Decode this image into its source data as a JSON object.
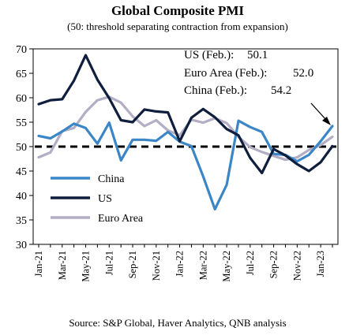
{
  "chart_data": {
    "type": "line",
    "title": "Global Composite PMI",
    "subtitle": "(50: threshold separating contraction from expansion)",
    "source": "Source: S&P Global, Haver Analytics, QNB analysis",
    "ylim": [
      30,
      70
    ],
    "yticks": [
      30,
      35,
      40,
      45,
      50,
      55,
      60,
      65,
      70
    ],
    "threshold": 50,
    "x": [
      "Jan-21",
      "Feb-21",
      "Mar-21",
      "Apr-21",
      "May-21",
      "Jun-21",
      "Jul-21",
      "Aug-21",
      "Sep-21",
      "Oct-21",
      "Nov-21",
      "Dec-21",
      "Jan-22",
      "Feb-22",
      "Mar-22",
      "Apr-22",
      "May-22",
      "Jun-22",
      "Jul-22",
      "Aug-22",
      "Sep-22",
      "Oct-22",
      "Nov-22",
      "Dec-22",
      "Jan-23",
      "Feb-23"
    ],
    "xtick_labels": [
      "Jan-21",
      "Mar-21",
      "May-21",
      "Jul-21",
      "Sep-21",
      "Nov-21",
      "Jan-22",
      "Mar-22",
      "May-22",
      "Jul-22",
      "Sep-22",
      "Nov-22",
      "Jan-23"
    ],
    "series": [
      {
        "name": "China",
        "color": "#3b86c6",
        "values": [
          52.2,
          51.7,
          53.1,
          54.7,
          53.8,
          50.6,
          54.9,
          47.2,
          51.4,
          51.4,
          51.2,
          53.0,
          51.0,
          50.1,
          43.9,
          37.2,
          42.2,
          55.3,
          54.0,
          53.0,
          48.5,
          48.3,
          47.0,
          48.3,
          51.1,
          54.2
        ]
      },
      {
        "name": "US",
        "color": "#0f1e3d",
        "values": [
          58.7,
          59.5,
          59.7,
          63.5,
          68.7,
          63.7,
          59.9,
          55.4,
          55.0,
          57.6,
          57.2,
          57.0,
          51.1,
          55.9,
          57.7,
          56.0,
          53.6,
          52.3,
          47.7,
          44.6,
          49.5,
          48.2,
          46.4,
          45.0,
          46.8,
          50.1
        ]
      },
      {
        "name": "Euro Area",
        "color": "#b3aec4",
        "values": [
          47.8,
          48.8,
          53.2,
          53.8,
          57.1,
          59.5,
          60.2,
          59.0,
          56.2,
          54.2,
          55.4,
          53.3,
          52.3,
          55.5,
          54.9,
          55.8,
          54.8,
          52.0,
          49.9,
          48.9,
          48.1,
          47.3,
          47.8,
          49.3,
          50.3,
          52.0
        ]
      }
    ],
    "legend": {
      "placement": "lower-left",
      "entries": [
        "China",
        "US",
        "Euro Area"
      ]
    },
    "annotations": [
      {
        "label": "US (Feb.):",
        "value": "50.1"
      },
      {
        "label": "Euro Area (Feb.):",
        "value": "52.0"
      },
      {
        "label": "China (Feb.):",
        "value": "54.2"
      }
    ]
  }
}
